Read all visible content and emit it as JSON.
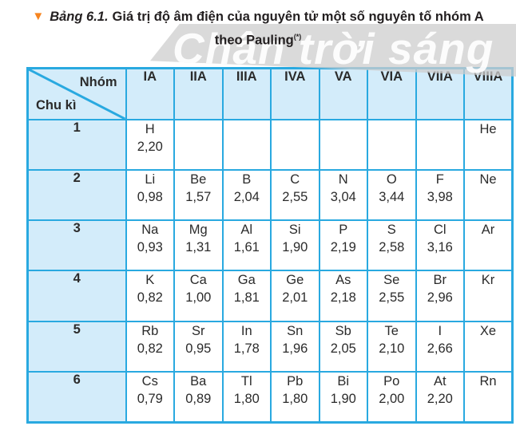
{
  "title": {
    "marker": "▼",
    "label": "Bảng 6.1.",
    "text": "Giá trị độ âm điện của nguyên tử một số nguyên tố nhóm A",
    "line2": "theo Pauling",
    "footnote_mark": "(*)"
  },
  "watermark": {
    "text": "Chân trời sáng"
  },
  "table": {
    "corner_top": "Nhóm",
    "corner_bottom": "Chu kì",
    "group_headers": [
      "IA",
      "IIA",
      "IIIA",
      "IVA",
      "VA",
      "VIA",
      "VIIA",
      "VIIIA"
    ],
    "rows": [
      {
        "period": "1",
        "cells": [
          {
            "symbol": "H",
            "value": "2,20"
          },
          {
            "symbol": "",
            "value": ""
          },
          {
            "symbol": "",
            "value": ""
          },
          {
            "symbol": "",
            "value": ""
          },
          {
            "symbol": "",
            "value": ""
          },
          {
            "symbol": "",
            "value": ""
          },
          {
            "symbol": "",
            "value": ""
          },
          {
            "symbol": "He",
            "value": ""
          }
        ]
      },
      {
        "period": "2",
        "cells": [
          {
            "symbol": "Li",
            "value": "0,98"
          },
          {
            "symbol": "Be",
            "value": "1,57"
          },
          {
            "symbol": "B",
            "value": "2,04"
          },
          {
            "symbol": "C",
            "value": "2,55"
          },
          {
            "symbol": "N",
            "value": "3,04"
          },
          {
            "symbol": "O",
            "value": "3,44"
          },
          {
            "symbol": "F",
            "value": "3,98"
          },
          {
            "symbol": "Ne",
            "value": ""
          }
        ]
      },
      {
        "period": "3",
        "cells": [
          {
            "symbol": "Na",
            "value": "0,93"
          },
          {
            "symbol": "Mg",
            "value": "1,31"
          },
          {
            "symbol": "Al",
            "value": "1,61"
          },
          {
            "symbol": "Si",
            "value": "1,90"
          },
          {
            "symbol": "P",
            "value": "2,19"
          },
          {
            "symbol": "S",
            "value": "2,58"
          },
          {
            "symbol": "Cl",
            "value": "3,16"
          },
          {
            "symbol": "Ar",
            "value": ""
          }
        ]
      },
      {
        "period": "4",
        "cells": [
          {
            "symbol": "K",
            "value": "0,82"
          },
          {
            "symbol": "Ca",
            "value": "1,00"
          },
          {
            "symbol": "Ga",
            "value": "1,81"
          },
          {
            "symbol": "Ge",
            "value": "2,01"
          },
          {
            "symbol": "As",
            "value": "2,18"
          },
          {
            "symbol": "Se",
            "value": "2,55"
          },
          {
            "symbol": "Br",
            "value": "2,96"
          },
          {
            "symbol": "Kr",
            "value": ""
          }
        ]
      },
      {
        "period": "5",
        "cells": [
          {
            "symbol": "Rb",
            "value": "0,82"
          },
          {
            "symbol": "Sr",
            "value": "0,95"
          },
          {
            "symbol": "In",
            "value": "1,78"
          },
          {
            "symbol": "Sn",
            "value": "1,96"
          },
          {
            "symbol": "Sb",
            "value": "2,05"
          },
          {
            "symbol": "Te",
            "value": "2,10"
          },
          {
            "symbol": "I",
            "value": "2,66"
          },
          {
            "symbol": "Xe",
            "value": ""
          }
        ]
      },
      {
        "period": "6",
        "cells": [
          {
            "symbol": "Cs",
            "value": "0,79"
          },
          {
            "symbol": "Ba",
            "value": "0,89"
          },
          {
            "symbol": "Tl",
            "value": "1,80"
          },
          {
            "symbol": "Pb",
            "value": "1,80"
          },
          {
            "symbol": "Bi",
            "value": "1,90"
          },
          {
            "symbol": "Po",
            "value": "2,00"
          },
          {
            "symbol": "At",
            "value": "2,20"
          },
          {
            "symbol": "Rn",
            "value": ""
          }
        ]
      }
    ]
  },
  "colors": {
    "border": "#29a9e0",
    "header_bg": "#d3ecfa",
    "text": "#231f20",
    "accent": "#f6841f",
    "watermark_bg": "rgba(206,206,206,0.75)",
    "watermark_text": "rgba(255,255,255,0.9)"
  }
}
